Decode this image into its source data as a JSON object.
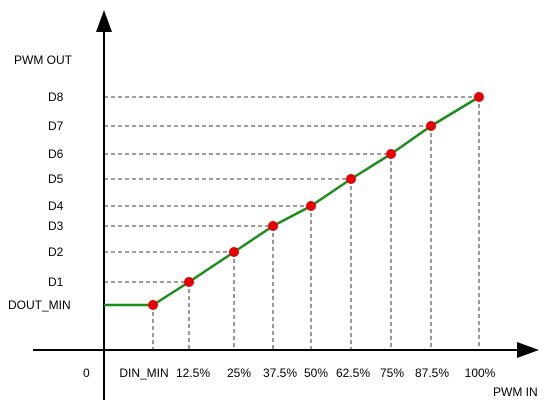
{
  "chart_data": {
    "type": "line",
    "ylabel": "PWM OUT",
    "xlabel": "PWM IN",
    "origin_label": "0",
    "x_tick_labels": [
      "DIN_MIN",
      "12.5%",
      "25%",
      "37.5%",
      "50%",
      "62.5%",
      "75%",
      "87.5%",
      "100%"
    ],
    "y_tick_labels": [
      "DOUT_MIN",
      "D1",
      "D2",
      "D3",
      "D4",
      "D5",
      "D6",
      "D7",
      "D8"
    ],
    "series": [
      {
        "x": [
          "DIN_MIN",
          "12.5%",
          "25%",
          "37.5%",
          "50%",
          "62.5%",
          "75%",
          "87.5%",
          "100%"
        ],
        "y": [
          "DOUT_MIN",
          "D1",
          "D2",
          "D3",
          "D4",
          "D5",
          "D6",
          "D7",
          "D8"
        ]
      }
    ],
    "flat_segment": {
      "from_x": 0,
      "to_x": "DIN_MIN",
      "y": "DOUT_MIN"
    },
    "grid": "dashed guide lines from each point to both axes",
    "colors": {
      "line": "#1a8c1a",
      "points": "#e60000",
      "axes": "#000000",
      "guides": "#000000"
    }
  }
}
